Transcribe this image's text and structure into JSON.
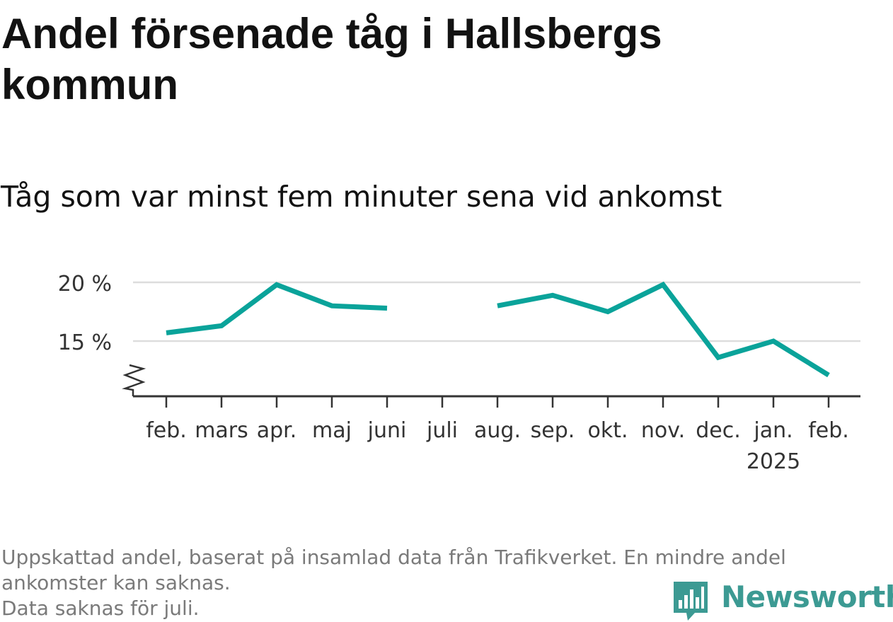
{
  "title": "Andel försenade tåg i Hallsbergs kommun",
  "subtitle": "Tåg som var minst fem minuter sena vid ankomst",
  "footnote": {
    "line1": "Uppskattad andel, baserat på insamlad data från Trafikverket. En mindre andel",
    "line2": "ankomster kan saknas.",
    "line3": "Data saknas för juli."
  },
  "brand": {
    "name": "Newsworthy",
    "icon": "newsworthy-logo-icon"
  },
  "colors": {
    "line": "#0aa39a",
    "grid": "#dddddd",
    "axis": "#333333",
    "text": "#333333",
    "brand": "#3c9a93"
  },
  "chart_data": {
    "type": "line",
    "categories": [
      "feb.",
      "mars",
      "apr.",
      "maj",
      "juni",
      "juli",
      "aug.",
      "sep.",
      "okt.",
      "nov.",
      "dec.",
      "jan.",
      "feb."
    ],
    "year_labels": [
      "",
      "",
      "",
      "",
      "",
      "",
      "",
      "",
      "",
      "",
      "",
      "2025",
      ""
    ],
    "series": [
      {
        "values": [
          15.7,
          16.3,
          19.8,
          18.0,
          17.8,
          null,
          18.0,
          18.9,
          17.5,
          19.8,
          13.6,
          15.0,
          12.1
        ]
      }
    ],
    "y_ticks": [
      15,
      20
    ],
    "y_tick_labels": [
      "15 %",
      "20 %"
    ],
    "ylim": [
      10.5,
      20
    ],
    "axis_break": true,
    "grid": true,
    "legend": "none"
  }
}
